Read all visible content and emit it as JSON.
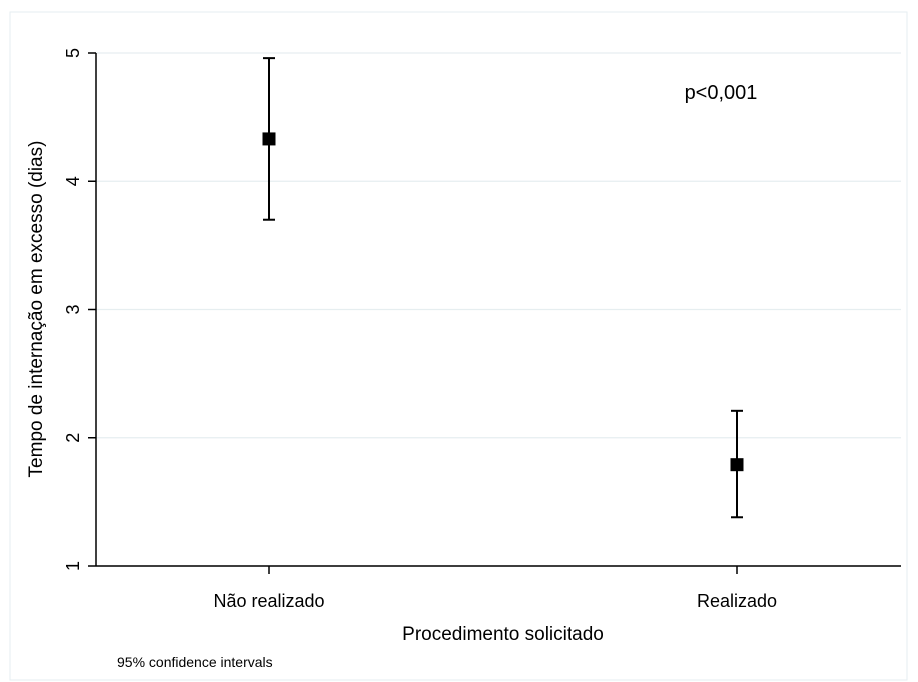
{
  "chart_data": {
    "type": "scatter",
    "subtype": "point-with-error-bars",
    "categories": [
      "Não realizado",
      "Realizado"
    ],
    "series": [
      {
        "values": [
          4.33,
          1.79
        ],
        "ci_low": [
          3.7,
          1.38
        ],
        "ci_high": [
          4.96,
          2.21
        ]
      }
    ],
    "xlabel": "Procedimento solicitado",
    "ylabel": "Tempo de internação em excesso (dias)",
    "ylim": [
      1,
      5
    ],
    "yticks": [
      1,
      2,
      3,
      4,
      5
    ],
    "grid": true,
    "annotation": "p<0,001",
    "note": "95% confidence intervals",
    "colors": {
      "marker": "#000000",
      "grid": "#e6eef0",
      "axis": "#000000",
      "frame": "#e6eef0"
    }
  }
}
